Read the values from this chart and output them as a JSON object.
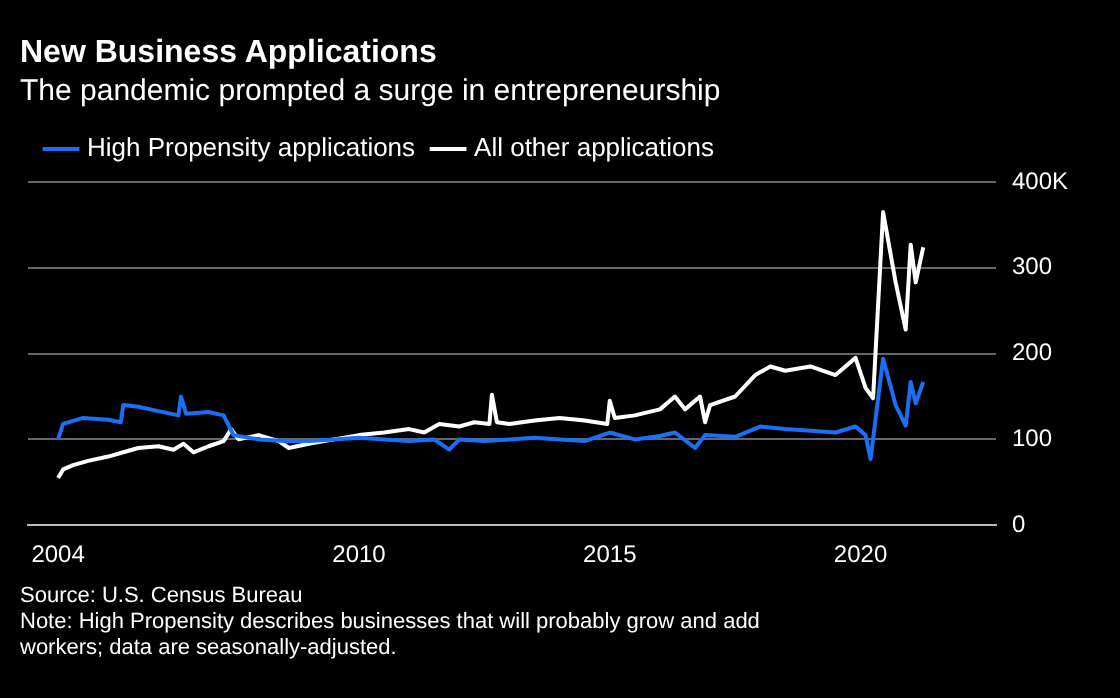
{
  "chart_data": {
    "type": "line",
    "title": "New Business Applications",
    "subtitle": "The pandemic prompted a surge in entrepreneurship",
    "xlim": [
      2003.4,
      2022.7
    ],
    "xticks": [
      2004,
      2010,
      2015,
      2020
    ],
    "ylim": [
      0,
      400
    ],
    "yticks": [
      0,
      100,
      200,
      300,
      {
        "value": 400,
        "label": "400K"
      }
    ],
    "grid": "y",
    "legend": "top left",
    "marker": "none",
    "line_style": "solid",
    "series": [
      {
        "name": "High Propensity applications",
        "color": "#1a6ff5",
        "x": [
          2004.0,
          2004.1,
          2004.5,
          2005.0,
          2005.25,
          2005.3,
          2005.6,
          2006.0,
          2006.4,
          2006.45,
          2006.55,
          2007.0,
          2007.3,
          2007.5,
          2008.0,
          2008.5,
          2009.0,
          2009.5,
          2010.0,
          2010.5,
          2011.0,
          2011.5,
          2011.8,
          2012.0,
          2012.5,
          2013.0,
          2013.5,
          2014.0,
          2014.5,
          2015.0,
          2015.5,
          2016.0,
          2016.3,
          2016.7,
          2016.9,
          2017.5,
          2018.0,
          2018.5,
          2019.0,
          2019.5,
          2019.9,
          2020.1,
          2020.2,
          2020.45,
          2020.7,
          2020.9,
          2021.0,
          2021.1,
          2021.25
        ],
        "values": [
          100,
          118,
          125,
          123,
          120,
          140,
          138,
          133,
          128,
          150,
          130,
          132,
          128,
          105,
          100,
          98,
          98,
          100,
          102,
          100,
          98,
          100,
          88,
          100,
          98,
          100,
          102,
          100,
          98,
          108,
          100,
          104,
          108,
          90,
          105,
          103,
          115,
          112,
          110,
          108,
          115,
          105,
          77,
          194,
          140,
          116,
          167,
          142,
          167
        ]
      },
      {
        "name": "All other applications",
        "color": "#ffffff",
        "x": [
          2004.0,
          2004.1,
          2004.3,
          2004.6,
          2005.0,
          2005.3,
          2005.6,
          2006.0,
          2006.3,
          2006.5,
          2006.7,
          2007.0,
          2007.3,
          2007.45,
          2007.6,
          2008.0,
          2008.4,
          2008.6,
          2009.0,
          2009.5,
          2010.0,
          2010.5,
          2011.0,
          2011.3,
          2011.6,
          2012.0,
          2012.3,
          2012.6,
          2012.65,
          2012.75,
          2013.0,
          2013.5,
          2014.0,
          2014.5,
          2014.95,
          2015.0,
          2015.1,
          2015.5,
          2016.0,
          2016.3,
          2016.5,
          2016.8,
          2016.9,
          2017.0,
          2017.5,
          2017.9,
          2018.2,
          2018.5,
          2019.0,
          2019.5,
          2019.9,
          2020.1,
          2020.25,
          2020.45,
          2020.7,
          2020.9,
          2021.0,
          2021.1,
          2021.25
        ],
        "values": [
          55,
          65,
          70,
          75,
          80,
          85,
          90,
          92,
          88,
          95,
          85,
          92,
          98,
          112,
          100,
          105,
          98,
          90,
          95,
          100,
          105,
          108,
          112,
          108,
          118,
          115,
          120,
          118,
          152,
          120,
          118,
          122,
          125,
          122,
          118,
          145,
          125,
          128,
          135,
          150,
          135,
          150,
          120,
          140,
          150,
          175,
          185,
          180,
          185,
          175,
          195,
          160,
          148,
          365,
          283,
          228,
          327,
          283,
          324
        ]
      }
    ],
    "annotations": [
      "Source: U.S. Census Bureau",
      "Note: High Propensity describes businesses that will probably grow and add workers; data are seasonally-adjusted."
    ]
  }
}
